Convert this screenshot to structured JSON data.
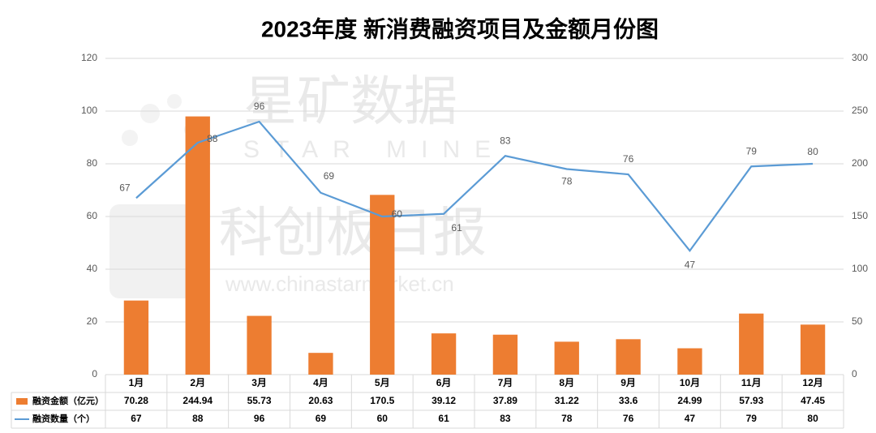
{
  "chart_data": {
    "type": "combo",
    "title": "2023年度 新消费融资项目及金额月份图",
    "categories": [
      "1月",
      "2月",
      "3月",
      "4月",
      "5月",
      "6月",
      "7月",
      "8月",
      "9月",
      "10月",
      "11月",
      "12月"
    ],
    "series": [
      {
        "name": "融资金额（亿元）",
        "type": "bar",
        "axis": "y2",
        "color": "#ed7d31",
        "values": [
          70.28,
          244.94,
          55.73,
          20.63,
          170.5,
          39.12,
          37.89,
          31.22,
          33.6,
          24.99,
          57.93,
          47.45
        ]
      },
      {
        "name": "融资数量（个）",
        "type": "line",
        "axis": "y",
        "color": "#5b9bd5",
        "values": [
          67,
          88,
          96,
          69,
          60,
          61,
          83,
          78,
          76,
          47,
          79,
          80
        ]
      }
    ],
    "ylim": [
      0,
      120
    ],
    "yticks": [
      0,
      20,
      40,
      60,
      80,
      100,
      120
    ],
    "y2lim": [
      0,
      300
    ],
    "y2ticks": [
      0,
      50,
      100,
      150,
      200,
      250,
      300
    ],
    "grid": true,
    "data_table": true,
    "watermark": [
      "星矿数据",
      "STAR MINE",
      "科创板日报",
      "www.chinastarmarket.cn"
    ]
  }
}
